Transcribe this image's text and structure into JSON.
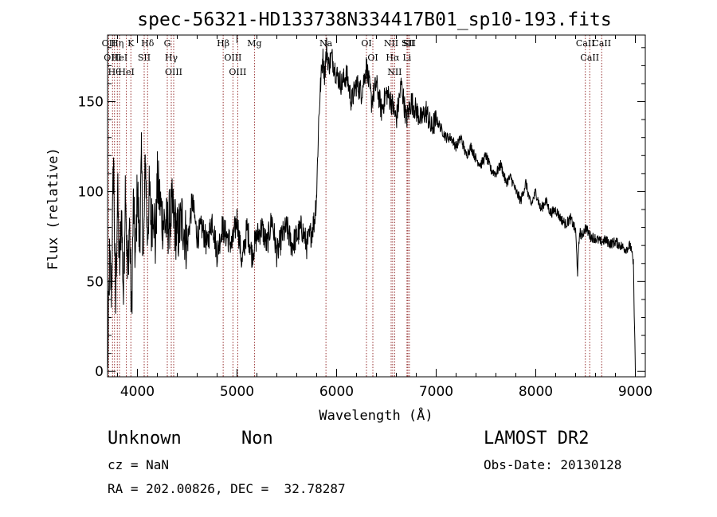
{
  "chart_data": {
    "type": "line",
    "title": "spec-56321-HD133738N334417B01_sp10-193.fits",
    "xlabel": "Wavelength (Å)",
    "ylabel": "Flux (relative)",
    "xlim": [
      3700,
      9100
    ],
    "ylim": [
      -3,
      187
    ],
    "xticks": [
      4000,
      5000,
      6000,
      7000,
      8000,
      9000
    ],
    "yticks": [
      0,
      50,
      100,
      150
    ],
    "grid": false,
    "line_color": "#000000",
    "marker_color": "#8b1a1a",
    "series": [
      {
        "x": [
          3700,
          3720,
          3740,
          3760,
          3780,
          3800,
          3820,
          3840,
          3860,
          3880,
          3900,
          3920,
          3940,
          3960,
          3980,
          4000,
          4020,
          4040,
          4060,
          4080,
          4100,
          4120,
          4140,
          4160,
          4180,
          4200,
          4250,
          4300,
          4350,
          4400,
          4450,
          4500,
          4550,
          4600,
          4650,
          4700,
          4750,
          4800,
          4850,
          4900,
          4950,
          5000,
          5050,
          5100,
          5150,
          5200,
          5250,
          5300,
          5350,
          5400,
          5450,
          5500,
          5550,
          5600,
          5650,
          5700,
          5750,
          5780,
          5800,
          5820,
          5840,
          5860,
          5880,
          5900,
          5920,
          5950,
          6000,
          6050,
          6100,
          6150,
          6200,
          6250,
          6300,
          6350,
          6400,
          6450,
          6500,
          6550,
          6600,
          6650,
          6700,
          6750,
          6800,
          6850,
          6900,
          6950,
          7000,
          7050,
          7100,
          7150,
          7200,
          7250,
          7300,
          7350,
          7400,
          7450,
          7500,
          7550,
          7600,
          7650,
          7700,
          7750,
          7800,
          7850,
          7900,
          7950,
          8000,
          8050,
          8100,
          8150,
          8200,
          8250,
          8300,
          8350,
          8400,
          8420,
          8440,
          8460,
          8500,
          8550,
          8600,
          8650,
          8700,
          8750,
          8800,
          8850,
          8900,
          8950,
          8980,
          9000
        ],
        "y": [
          0,
          60,
          45,
          120,
          35,
          100,
          55,
          90,
          40,
          110,
          50,
          85,
          30,
          95,
          60,
          105,
          70,
          115,
          60,
          120,
          75,
          100,
          80,
          95,
          70,
          105,
          85,
          80,
          90,
          75,
          85,
          70,
          95,
          75,
          80,
          70,
          85,
          65,
          80,
          75,
          70,
          85,
          60,
          80,
          65,
          75,
          80,
          70,
          85,
          65,
          75,
          80,
          70,
          75,
          80,
          70,
          78,
          85,
          100,
          140,
          160,
          175,
          165,
          180,
          170,
          175,
          165,
          160,
          165,
          150,
          160,
          155,
          170,
          150,
          160,
          145,
          155,
          150,
          140,
          160,
          140,
          150,
          145,
          140,
          145,
          135,
          140,
          135,
          130,
          130,
          125,
          130,
          120,
          125,
          118,
          115,
          120,
          112,
          110,
          115,
          105,
          108,
          100,
          95,
          105,
          92,
          100,
          90,
          95,
          88,
          90,
          85,
          82,
          85,
          78,
          55,
          78,
          75,
          80,
          75,
          74,
          72,
          73,
          71,
          72,
          70,
          68,
          70,
          60,
          0
        ]
      }
    ],
    "lines": [
      {
        "x": 3712,
        "label": "OII"
      },
      {
        "x": 3750,
        "label": "OIII"
      },
      {
        "x": 3770,
        "label": "Hθ"
      },
      {
        "x": 3798,
        "label": "Hη"
      },
      {
        "x": 3820,
        "label": "HeI"
      },
      {
        "x": 3889,
        "label": "HeI"
      },
      {
        "x": 3934,
        "label": "K"
      },
      {
        "x": 4068,
        "label": "SII"
      },
      {
        "x": 4102,
        "label": "Hδ"
      },
      {
        "x": 4300,
        "label": "G"
      },
      {
        "x": 4340,
        "label": "Hγ"
      },
      {
        "x": 4364,
        "label": "OIII"
      },
      {
        "x": 4861,
        "label": "Hβ"
      },
      {
        "x": 4959,
        "label": "OIII"
      },
      {
        "x": 5007,
        "label": "OIII"
      },
      {
        "x": 5175,
        "label": "Mg"
      },
      {
        "x": 5893,
        "label": "Na"
      },
      {
        "x": 6300,
        "label": "OI"
      },
      {
        "x": 6364,
        "label": "OI"
      },
      {
        "x": 6548,
        "label": "NII"
      },
      {
        "x": 6563,
        "label": "Hα"
      },
      {
        "x": 6583,
        "label": "NII"
      },
      {
        "x": 6707,
        "label": "Li"
      },
      {
        "x": 6716,
        "label": "SII"
      },
      {
        "x": 6731,
        "label": "SII"
      },
      {
        "x": 8498,
        "label": "CaII"
      },
      {
        "x": 8542,
        "label": "CaII"
      },
      {
        "x": 8662,
        "label": "CaII"
      }
    ]
  },
  "info": {
    "class": "Unknown",
    "subclass": "Non",
    "cz": "cz = NaN",
    "coords": "RA = 202.00826, DEC =  32.78287",
    "survey": "LAMOST DR2",
    "obs_date": "Obs-Date: 20130128"
  }
}
